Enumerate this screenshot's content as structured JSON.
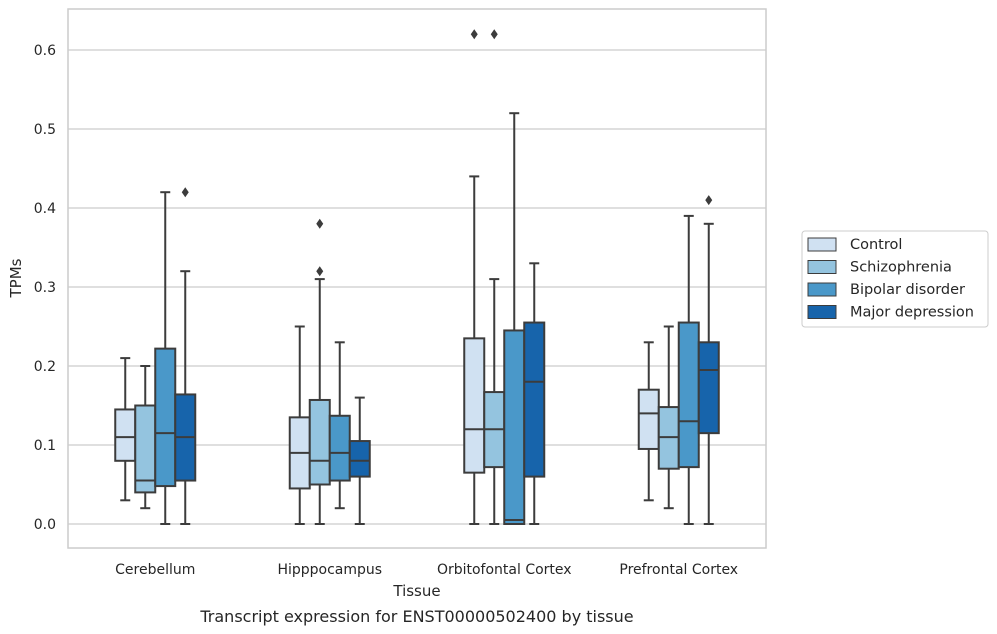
{
  "chart_data": {
    "type": "boxplot",
    "caption": "Transcript expression for ENST00000502400 by tissue",
    "xlabel": "Tissue",
    "ylabel": "TPMs",
    "ylim": [
      -0.03,
      0.655
    ],
    "yticks": [
      "0.0",
      "0.1",
      "0.2",
      "0.3",
      "0.4",
      "0.5",
      "0.6"
    ],
    "grid": true,
    "legend_position": "right",
    "categories": [
      "Cerebellum",
      "Hipppocampus",
      "Orbitofontal Cortex",
      "Prefrontal Cortex"
    ],
    "series": [
      {
        "name": "Control",
        "color": "#d0e1f2",
        "boxes": [
          {
            "whisker_low": 0.03,
            "q1": 0.08,
            "median": 0.11,
            "q3": 0.145,
            "whisker_high": 0.21,
            "outliers": []
          },
          {
            "whisker_low": 0.0,
            "q1": 0.045,
            "median": 0.09,
            "q3": 0.135,
            "whisker_high": 0.25,
            "outliers": []
          },
          {
            "whisker_low": 0.0,
            "q1": 0.065,
            "median": 0.12,
            "q3": 0.235,
            "whisker_high": 0.44,
            "outliers": [
              0.62
            ]
          },
          {
            "whisker_low": 0.03,
            "q1": 0.095,
            "median": 0.14,
            "q3": 0.17,
            "whisker_high": 0.23,
            "outliers": []
          }
        ]
      },
      {
        "name": "Schizophrenia",
        "color": "#94c4df",
        "boxes": [
          {
            "whisker_low": 0.02,
            "q1": 0.04,
            "median": 0.055,
            "q3": 0.15,
            "whisker_high": 0.2,
            "outliers": []
          },
          {
            "whisker_low": 0.0,
            "q1": 0.05,
            "median": 0.08,
            "q3": 0.157,
            "whisker_high": 0.31,
            "outliers": [
              0.32,
              0.38
            ]
          },
          {
            "whisker_low": 0.0,
            "q1": 0.072,
            "median": 0.12,
            "q3": 0.167,
            "whisker_high": 0.31,
            "outliers": [
              0.62
            ]
          },
          {
            "whisker_low": 0.02,
            "q1": 0.07,
            "median": 0.11,
            "q3": 0.148,
            "whisker_high": 0.25,
            "outliers": []
          }
        ]
      },
      {
        "name": "Bipolar disorder",
        "color": "#4a98c9",
        "boxes": [
          {
            "whisker_low": 0.0,
            "q1": 0.048,
            "median": 0.115,
            "q3": 0.222,
            "whisker_high": 0.42,
            "outliers": []
          },
          {
            "whisker_low": 0.02,
            "q1": 0.055,
            "median": 0.09,
            "q3": 0.137,
            "whisker_high": 0.23,
            "outliers": []
          },
          {
            "whisker_low": 0.0,
            "q1": 0.0,
            "median": 0.005,
            "q3": 0.245,
            "whisker_high": 0.52,
            "outliers": []
          },
          {
            "whisker_low": 0.0,
            "q1": 0.072,
            "median": 0.13,
            "q3": 0.255,
            "whisker_high": 0.39,
            "outliers": []
          }
        ]
      },
      {
        "name": "Major depression",
        "color": "#1764ab",
        "boxes": [
          {
            "whisker_low": 0.0,
            "q1": 0.055,
            "median": 0.11,
            "q3": 0.164,
            "whisker_high": 0.32,
            "outliers": [
              0.42
            ]
          },
          {
            "whisker_low": 0.0,
            "q1": 0.06,
            "median": 0.08,
            "q3": 0.105,
            "whisker_high": 0.16,
            "outliers": []
          },
          {
            "whisker_low": 0.0,
            "q1": 0.06,
            "median": 0.18,
            "q3": 0.255,
            "whisker_high": 0.33,
            "outliers": []
          },
          {
            "whisker_low": 0.0,
            "q1": 0.115,
            "median": 0.195,
            "q3": 0.23,
            "whisker_high": 0.38,
            "outliers": [
              0.41
            ]
          }
        ]
      }
    ]
  }
}
